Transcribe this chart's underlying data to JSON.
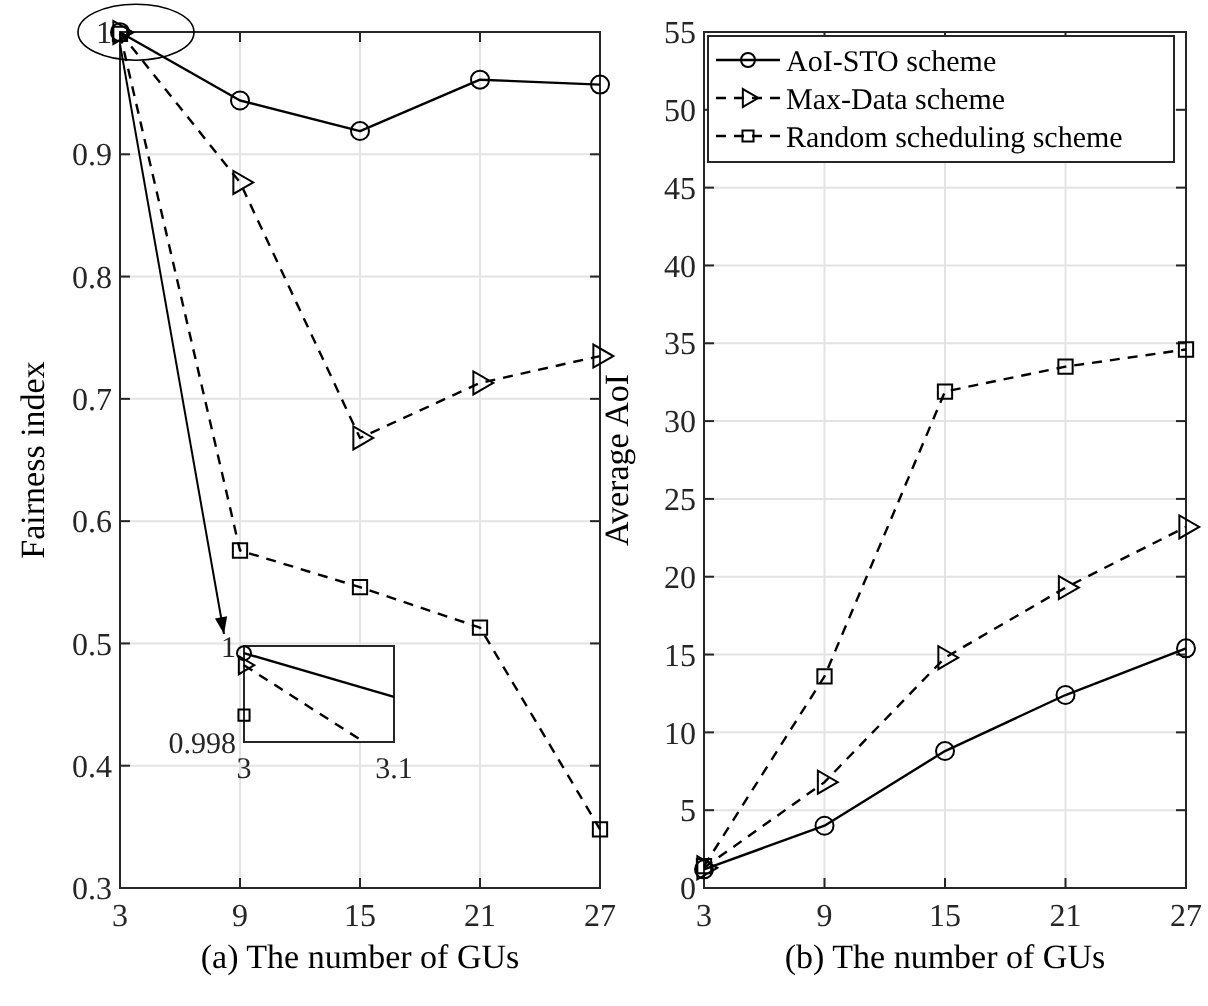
{
  "chart_data": [
    {
      "type": "line",
      "xlabel": "(a) The number of GUs",
      "ylabel": "Fairness index",
      "xlim": [
        3,
        27
      ],
      "xticks": [
        3,
        9,
        15,
        21,
        27
      ],
      "ylim": [
        0.3,
        1
      ],
      "yticks": [
        0.3,
        0.4,
        0.5,
        0.6,
        0.7,
        0.8,
        0.9,
        1
      ],
      "grid": true,
      "legend": false,
      "x": [
        3,
        9,
        15,
        21,
        27
      ],
      "series": [
        {
          "color": "#000000",
          "marker": "circle",
          "line_style": "solid",
          "values": [
            0.99985,
            0.944,
            0.919,
            0.961,
            0.957
          ]
        },
        {
          "color": "#000000",
          "marker": "triangle",
          "line_style": "dashed",
          "values": [
            0.9996,
            0.877,
            0.668,
            0.713,
            0.735
          ]
        },
        {
          "color": "#000000",
          "marker": "square",
          "line_style": "dashed",
          "values": [
            0.99856,
            0.576,
            0.546,
            0.513,
            0.348
          ]
        }
      ]
    },
    {
      "type": "line",
      "xlabel": "(b) The number of GUs",
      "ylabel": "Average AoI",
      "xlim": [
        3,
        27
      ],
      "xticks": [
        3,
        9,
        15,
        21,
        27
      ],
      "ylim": [
        0,
        55
      ],
      "yticks": [
        0,
        5,
        10,
        15,
        20,
        25,
        30,
        35,
        40,
        45,
        50,
        55
      ],
      "grid": true,
      "legend": "top left",
      "x": [
        3,
        9,
        15,
        21,
        27
      ],
      "series": [
        {
          "name": "AoI-STO scheme",
          "color": "#000000",
          "marker": "circle",
          "line_style": "solid",
          "values": [
            1.2,
            4.0,
            8.8,
            12.4,
            15.4
          ]
        },
        {
          "name": "Max-Data scheme",
          "color": "#000000",
          "marker": "triangle",
          "line_style": "dashed",
          "values": [
            1.3,
            6.8,
            14.8,
            19.3,
            23.2
          ]
        },
        {
          "name": "Random scheduling scheme",
          "color": "#000000",
          "marker": "square",
          "line_style": "dashed",
          "values": [
            1.4,
            13.6,
            31.9,
            33.5,
            34.6
          ]
        }
      ]
    },
    {
      "type": "line",
      "xlim": [
        3,
        3.1
      ],
      "xticks": [
        3,
        3.1
      ],
      "ylim": [
        0.998,
        1
      ],
      "yticks": [
        0.998,
        1
      ],
      "grid": false,
      "legend": false,
      "series": [
        {
          "color": "#000000",
          "marker": "none",
          "line_style": "solid",
          "x": [
            3,
            3.1
          ],
          "values": [
            0.99985,
            0.99894
          ]
        },
        {
          "color": "#000000",
          "marker": "none",
          "line_style": "dashed",
          "x": [
            3,
            3.08
          ],
          "values": [
            0.9996,
            0.998
          ]
        },
        {
          "type": "scatter",
          "color": "#000000",
          "marker": "circle",
          "x": [
            3
          ],
          "values": [
            0.99985
          ]
        },
        {
          "type": "scatter",
          "color": "#000000",
          "marker": "triangle",
          "x": [
            3
          ],
          "values": [
            0.9996
          ]
        },
        {
          "type": "scatter",
          "color": "#000000",
          "marker": "square",
          "x": [
            3
          ],
          "values": [
            0.99856
          ]
        }
      ]
    }
  ]
}
